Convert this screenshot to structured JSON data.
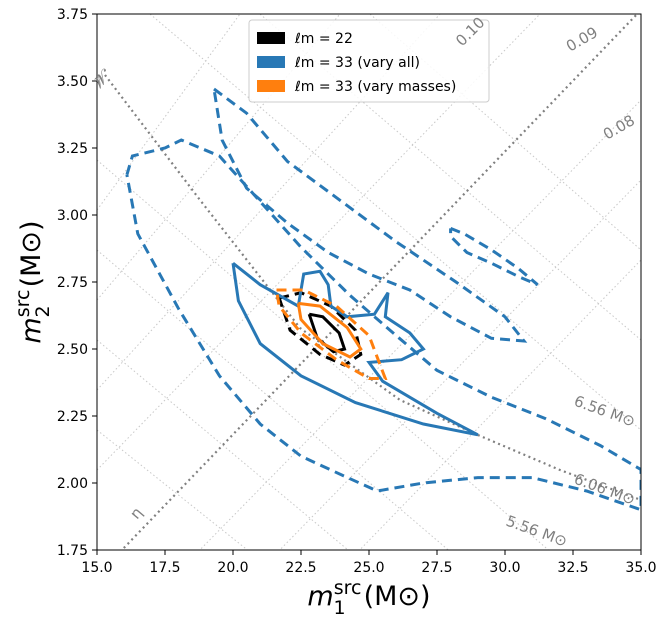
{
  "chart_data": {
    "type": "contour",
    "xlabel": {
      "symbol": "m",
      "subscript": "1",
      "superscript": "src",
      "unit": "(M⊙)"
    },
    "ylabel": {
      "symbol": "m",
      "subscript": "2",
      "superscript": "src",
      "unit": "(M⊙)"
    },
    "xlim": [
      15,
      35
    ],
    "ylim": [
      1.75,
      3.75
    ],
    "xticks": [
      {
        "value": 15,
        "label": "15.0"
      },
      17.5,
      {
        "value": 20,
        "label": "20.0"
      },
      22.5,
      {
        "value": 25,
        "label": "25.0"
      },
      27.5,
      {
        "value": 30,
        "label": "30.0"
      },
      32.5,
      {
        "value": 35,
        "label": "35.0"
      }
    ],
    "yticks": [
      1.75,
      {
        "value": 2,
        "label": "2.00"
      },
      2.25,
      {
        "value": 2.5,
        "label": "2.50"
      },
      2.75,
      {
        "value": 3,
        "label": "3.00"
      },
      3.25,
      {
        "value": 3.5,
        "label": "3.50"
      },
      3.75
    ],
    "legend": "upper center",
    "annotations": [
      "0.10",
      "0.09",
      "0.08",
      "6.56 M⊙",
      "6.06 M⊙",
      "5.56 M⊙",
      "𝓜",
      "η"
    ],
    "series": [
      {
        "name": "ℓm = 22",
        "color": "#000000",
        "contours": [
          {
            "style": "dashed",
            "x": [
              21.7,
              22.5,
              23.6,
              24.5,
              24.7,
              24.1,
              23.2,
              22.1,
              21.7
            ],
            "y": [
              2.69,
              2.71,
              2.66,
              2.57,
              2.48,
              2.44,
              2.48,
              2.57,
              2.69
            ]
          },
          {
            "style": "solid",
            "x": [
              22.8,
              23.3,
              23.9,
              24.1,
              23.7,
              23.1,
              22.8
            ],
            "y": [
              2.63,
              2.62,
              2.56,
              2.5,
              2.49,
              2.54,
              2.63
            ]
          }
        ]
      },
      {
        "name": "ℓm = 33 (vary all)",
        "color": "#2878b5",
        "contours": [
          {
            "style": "solid",
            "x": [
              20.0,
              21.0,
              22.4,
              22.6,
              23.2,
              23.5,
              23.6,
              24.2,
              25.2,
              25.7,
              25.6,
              26.5,
              27.0,
              26.2,
              25.0,
              25.5,
              27.5,
              29.0,
              27.0,
              24.5,
              22.5,
              21.0,
              20.2,
              20.0
            ],
            "y": [
              2.82,
              2.74,
              2.66,
              2.78,
              2.79,
              2.74,
              2.66,
              2.62,
              2.63,
              2.71,
              2.62,
              2.56,
              2.5,
              2.46,
              2.45,
              2.38,
              2.26,
              2.18,
              2.22,
              2.3,
              2.4,
              2.52,
              2.68,
              2.82
            ]
          },
          {
            "style": "dashed",
            "x": [
              19.3,
              20.5,
              22.0,
              24.0,
              26.0,
              28.2,
              30.0,
              30.7,
              29.5,
              28.0,
              26.5,
              25.0,
              23.5,
              22.0,
              20.5,
              19.6,
              19.3
            ],
            "y": [
              3.47,
              3.38,
              3.2,
              3.05,
              2.9,
              2.75,
              2.62,
              2.53,
              2.54,
              2.62,
              2.72,
              2.78,
              2.86,
              2.97,
              3.1,
              3.28,
              3.47
            ]
          },
          {
            "style": "dashed",
            "x": [
              16.1,
              16.3,
              17.5,
              18.1,
              19.5,
              21.0,
              22.5,
              24.3,
              26.0,
              27.5,
              29.5,
              31.5,
              33.5,
              35.0,
              35.0,
              33.0,
              31.0,
              29.0,
              27.0,
              25.3,
              24.0,
              22.5,
              21.0,
              19.5,
              18.0,
              16.5,
              16.1
            ],
            "y": [
              3.15,
              3.22,
              3.25,
              3.28,
              3.22,
              3.05,
              2.88,
              2.7,
              2.55,
              2.42,
              2.32,
              2.24,
              2.14,
              2.05,
              1.9,
              1.97,
              2.02,
              2.02,
              2.0,
              1.97,
              2.03,
              2.1,
              2.22,
              2.4,
              2.65,
              2.93,
              3.15
            ]
          },
          {
            "style": "dashed",
            "x": [
              28.0,
              28.5,
              29.5,
              30.5,
              31.2,
              30.5,
              29.5,
              28.6,
              28.0,
              28.0
            ],
            "y": [
              2.95,
              2.93,
              2.87,
              2.8,
              2.74,
              2.77,
              2.82,
              2.86,
              2.92,
              2.95
            ]
          }
        ]
      },
      {
        "name": "ℓm = 33 (vary masses)",
        "color": "#ff7f0e",
        "contours": [
          {
            "style": "dashed",
            "x": [
              21.6,
              22.6,
              23.8,
              25.0,
              25.6,
              25.0,
              23.8,
              22.5,
              21.7,
              21.6
            ],
            "y": [
              2.72,
              2.72,
              2.66,
              2.55,
              2.39,
              2.39,
              2.46,
              2.56,
              2.66,
              2.72
            ]
          },
          {
            "style": "solid",
            "x": [
              22.4,
              23.2,
              24.2,
              24.7,
              24.3,
              23.3,
              22.5,
              22.4
            ],
            "y": [
              2.67,
              2.66,
              2.58,
              2.5,
              2.47,
              2.52,
              2.61,
              2.67
            ]
          }
        ]
      }
    ]
  }
}
